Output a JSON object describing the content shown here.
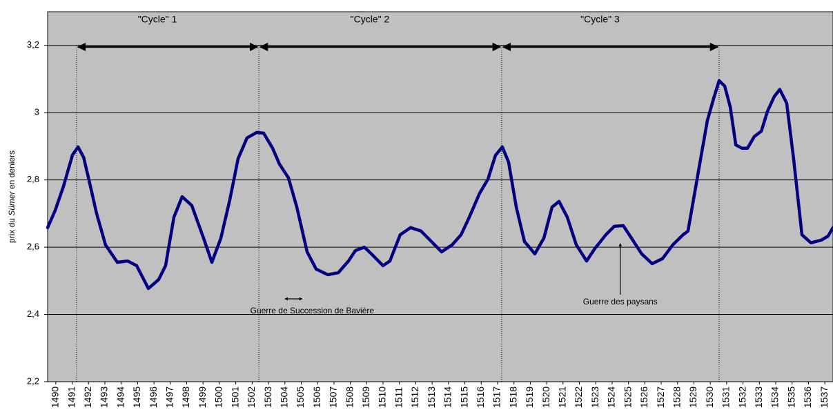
{
  "chart_data": {
    "type": "line",
    "y_label": [
      "prix du ",
      "Sümer",
      " en deniers"
    ],
    "xlim": [
      1489.5,
      1537.5
    ],
    "xticks": [
      1490,
      1491,
      1492,
      1493,
      1494,
      1495,
      1496,
      1497,
      1498,
      1499,
      1500,
      1501,
      1502,
      1503,
      1504,
      1505,
      1506,
      1507,
      1508,
      1509,
      1510,
      1511,
      1512,
      1513,
      1514,
      1515,
      1516,
      1517,
      1518,
      1519,
      1520,
      1521,
      1522,
      1523,
      1524,
      1525,
      1526,
      1527,
      1528,
      1529,
      1530,
      1531,
      1532,
      1533,
      1534,
      1535,
      1536,
      1537
    ],
    "ylim": [
      2.2,
      3.3
    ],
    "yticks": [
      {
        "value": 2.2,
        "label": "2,2"
      },
      {
        "value": 2.4,
        "label": "2,4"
      },
      {
        "value": 2.6,
        "label": "2,6"
      },
      {
        "value": 2.8,
        "label": "2,8"
      },
      3,
      {
        "value": 3.2,
        "label": "3,2"
      }
    ],
    "grid": true,
    "series": [
      {
        "color": "#000080",
        "x": [
          1489.5,
          1489.96,
          1490.47,
          1491.02,
          1491.36,
          1491.7,
          1492.07,
          1492.5,
          1493.04,
          1493.76,
          1494.39,
          1494.94,
          1495.66,
          1496.29,
          1496.71,
          1497.22,
          1497.72,
          1498.31,
          1499.03,
          1499.54,
          1500.09,
          1500.63,
          1501.14,
          1501.69,
          1502.28,
          1502.7,
          1503.25,
          1503.67,
          1504.22,
          1504.73,
          1505.36,
          1505.91,
          1506.62,
          1507.26,
          1507.89,
          1508.31,
          1508.86,
          1509.37,
          1510.0,
          1510.42,
          1511.05,
          1511.68,
          1512.32,
          1512.95,
          1513.58,
          1514.22,
          1514.77,
          1515.27,
          1515.9,
          1516.41,
          1516.87,
          1517.29,
          1517.67,
          1518.14,
          1518.64,
          1519.28,
          1519.83,
          1520.33,
          1520.76,
          1521.26,
          1521.81,
          1522.44,
          1522.95,
          1523.62,
          1524.13,
          1524.68,
          1525.18,
          1525.81,
          1526.45,
          1527.08,
          1527.71,
          1528.34,
          1528.64,
          1529.19,
          1529.82,
          1530.24,
          1530.54,
          1530.88,
          1531.22,
          1531.56,
          1531.94,
          1532.27,
          1532.69,
          1533.12,
          1533.49,
          1533.91,
          1534.25,
          1534.67,
          1535.09,
          1535.6,
          1536.15,
          1536.78,
          1537.2,
          1537.5
        ],
        "values": [
          2.658,
          2.709,
          2.781,
          2.874,
          2.898,
          2.867,
          2.791,
          2.699,
          2.607,
          2.555,
          2.559,
          2.545,
          2.477,
          2.504,
          2.545,
          2.689,
          2.75,
          2.724,
          2.627,
          2.555,
          2.627,
          2.74,
          2.863,
          2.925,
          2.941,
          2.939,
          2.894,
          2.847,
          2.806,
          2.719,
          2.586,
          2.535,
          2.518,
          2.524,
          2.559,
          2.59,
          2.6,
          2.576,
          2.545,
          2.559,
          2.637,
          2.658,
          2.648,
          2.617,
          2.586,
          2.607,
          2.637,
          2.689,
          2.76,
          2.802,
          2.873,
          2.898,
          2.853,
          2.72,
          2.617,
          2.58,
          2.627,
          2.719,
          2.736,
          2.689,
          2.607,
          2.559,
          2.596,
          2.637,
          2.662,
          2.664,
          2.627,
          2.58,
          2.551,
          2.566,
          2.607,
          2.637,
          2.648,
          2.802,
          2.976,
          3.048,
          3.095,
          3.079,
          3.017,
          2.904,
          2.894,
          2.894,
          2.929,
          2.945,
          3.003,
          3.048,
          3.069,
          3.028,
          2.863,
          2.637,
          2.613,
          2.621,
          2.633,
          2.658
        ]
      }
    ],
    "cycles": [
      {
        "label": "\"Cycle\" 1",
        "start": 1491.27,
        "end": 1502.41
      },
      {
        "label": "\"Cycle\" 2",
        "start": 1502.41,
        "end": 1517.25
      },
      {
        "label": "\"Cycle\" 3",
        "start": 1517.25,
        "end": 1530.54
      }
    ],
    "annotations": [
      {
        "text": "Guerre de Succession de Bavière",
        "start": 1504.0,
        "end": 1505.06
      },
      {
        "text": "Guerre des paysans",
        "x": 1524.5,
        "y": 2.607
      }
    ]
  }
}
